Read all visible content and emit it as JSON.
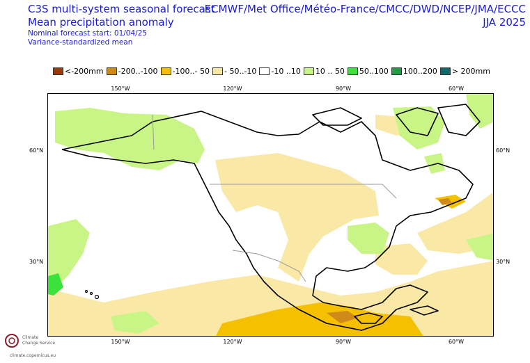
{
  "header": {
    "title_line1": "C3S multi-system seasonal forecast",
    "title_line2": "Mean precipitation anomaly",
    "subtitle_line1": "Nominal forecast start: 01/04/25",
    "subtitle_line2": "Variance-standardized mean",
    "systems": "ECMWF/Met Office/Météo-France/CMCC/DWD/NCEP/JMA/ECCC",
    "season": "JJA 2025"
  },
  "legend": [
    {
      "label": "<-200mm",
      "color": "#9a3a0a"
    },
    {
      "label": "-200..-100",
      "color": "#d08a1a"
    },
    {
      "label": "-100..- 50",
      "color": "#f5c000"
    },
    {
      "label": "- 50..-10",
      "color": "#fae8a6"
    },
    {
      "label": "-10 ..10",
      "color": "#ffffff"
    },
    {
      "label": "10 .. 50",
      "color": "#c9f586"
    },
    {
      "label": "50..100",
      "color": "#3ce23c"
    },
    {
      "label": "100..200",
      "color": "#1f9e45"
    },
    {
      "label": "> 200mm",
      "color": "#0e6a6a"
    }
  ],
  "axes": {
    "lon_top": [
      "150°W",
      "120°W",
      "90°W",
      "60°W"
    ],
    "lon_bottom": [
      "150°W",
      "120°W",
      "90°W",
      "60°W"
    ],
    "lat_left": [
      "60°N",
      "30°N"
    ],
    "lat_right": [
      "60°N",
      "30°N"
    ]
  },
  "branding": {
    "name_line1": "Climate",
    "name_line2": "Change Service",
    "url": "climate.copernicus.eu"
  }
}
